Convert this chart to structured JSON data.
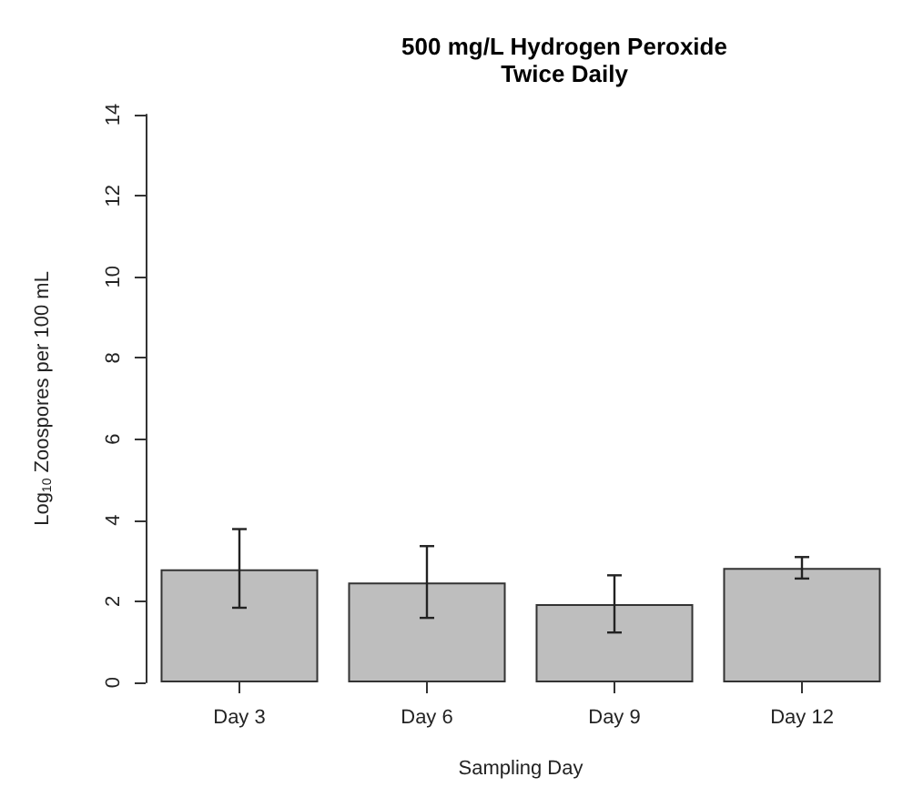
{
  "chart_data": {
    "type": "bar",
    "title": "500 mg/L Hydrogen Peroxide",
    "subtitle": "Twice Daily",
    "xlabel": "Sampling Day",
    "ylabel": "Log$_{10}$ Zoospores per 100 mL",
    "categories": [
      "Day 3",
      "Day 6",
      "Day 9",
      "Day 12"
    ],
    "values": [
      2.79,
      2.46,
      1.93,
      2.82
    ],
    "errors": [
      [
        1.84,
        3.78
      ],
      [
        1.59,
        3.36
      ],
      [
        1.23,
        2.64
      ],
      [
        2.56,
        3.09
      ]
    ],
    "color": "#bebebe",
    "ylim": [
      0,
      14
    ],
    "yticks": [
      0,
      2,
      4,
      6,
      8,
      10,
      12,
      14
    ],
    "grid": false
  }
}
